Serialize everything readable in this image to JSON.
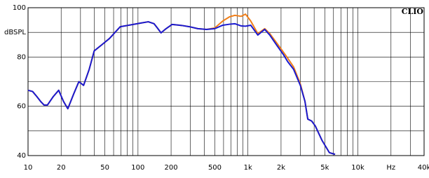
{
  "chart_data": {
    "type": "line",
    "title": "CLIO",
    "x": [
      10,
      11,
      12,
      13,
      14,
      15,
      17,
      19,
      21,
      23,
      26,
      29,
      32,
      36,
      40,
      47,
      55,
      69,
      85,
      104,
      124,
      140,
      150,
      162,
      180,
      204,
      250,
      293,
      350,
      420,
      500,
      590,
      680,
      760,
      870,
      950,
      1060,
      1230,
      1420,
      1580,
      1840,
      2100,
      2300,
      2600,
      3000,
      3300,
      3500,
      3800,
      4100,
      4700,
      5500,
      6200
    ],
    "series": [
      {
        "color": "#f07f1a",
        "values": [
          66.5,
          66,
          64,
          62,
          60.5,
          60.5,
          64,
          66.5,
          62,
          59,
          65,
          70,
          68.5,
          75,
          82.5,
          85,
          87.5,
          92.3,
          93,
          93.7,
          94.3,
          93.5,
          91.8,
          89.8,
          91.5,
          93.2,
          92.8,
          92.3,
          91.5,
          91.2,
          91.8,
          94.6,
          96.3,
          96.9,
          96.5,
          97.4,
          94.6,
          89.5,
          91.5,
          89.5,
          85.5,
          82,
          79.5,
          76,
          69,
          62,
          54.8,
          54,
          52,
          46.3,
          41.2,
          40.5
        ]
      },
      {
        "color": "#1a1ad0",
        "values": [
          66.5,
          66,
          64,
          62,
          60.5,
          60.5,
          64,
          66.5,
          62,
          59,
          65,
          70,
          68.5,
          75,
          82.5,
          85,
          87.5,
          92.3,
          93,
          93.7,
          94.3,
          93.5,
          91.8,
          89.8,
          91.5,
          93.2,
          92.8,
          92.3,
          91.5,
          91.2,
          91.5,
          92.9,
          93.3,
          93.5,
          92.6,
          92.5,
          92.9,
          88.9,
          91.2,
          88.9,
          84.6,
          81,
          78.1,
          75,
          68.4,
          62,
          54.8,
          54,
          52,
          46.3,
          41.2,
          40.5
        ]
      }
    ],
    "log_x": true,
    "xlim": [
      10,
      40000
    ],
    "xticks": [
      10,
      20,
      50,
      100,
      200,
      500,
      {
        "value": 1000,
        "label": "1k"
      },
      {
        "value": 2000,
        "label": "2k"
      },
      {
        "value": 5000,
        "label": "5k"
      },
      {
        "value": 10000,
        "label": "10k"
      },
      {
        "value": 20000,
        "label": "Hz"
      },
      {
        "value": 40000,
        "label": "40k"
      }
    ],
    "x_minor_grid": [
      30,
      40,
      60,
      70,
      80,
      90,
      300,
      400,
      600,
      700,
      800,
      900,
      3000,
      4000,
      6000,
      7000,
      8000,
      9000,
      30000
    ],
    "ylim": [
      40,
      100
    ],
    "yticks": [
      40,
      60,
      80,
      {
        "value": 90,
        "label": "dBSPL"
      },
      100
    ],
    "y_minor_grid": [
      50,
      70
    ],
    "grid": true
  }
}
